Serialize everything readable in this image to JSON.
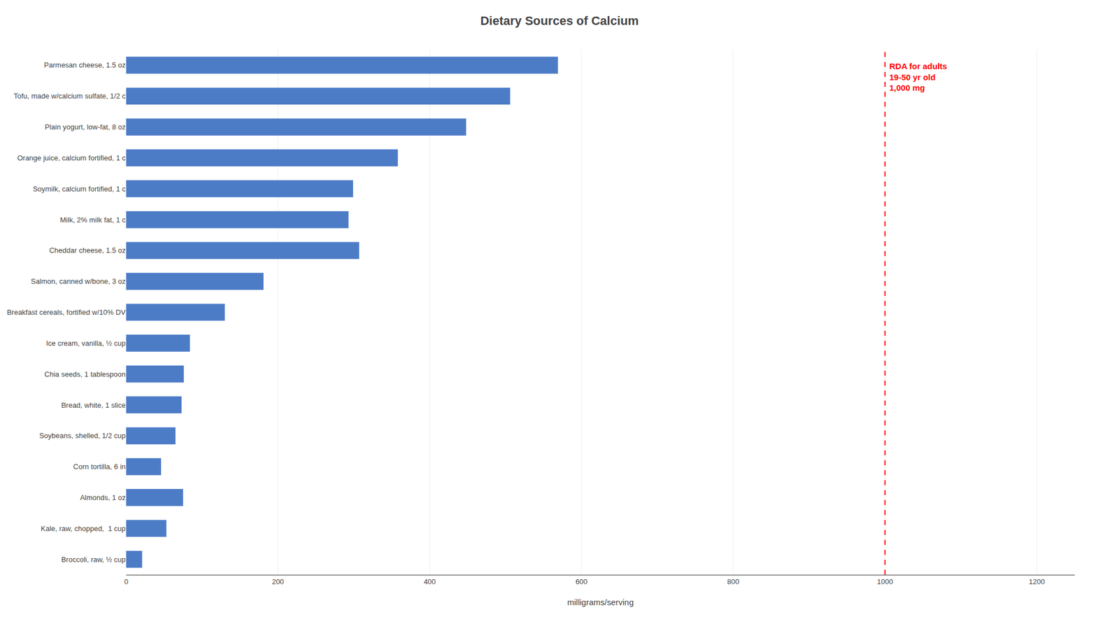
{
  "chart_data": {
    "type": "bar",
    "orientation": "horizontal",
    "title": "Dietary Sources of Calcium",
    "xlabel": "milligrams/serving",
    "categories": [
      "Parmesan cheese, 1.5 oz",
      "Tofu, made w/calcium sulfate, 1/2 c",
      "Plain yogurt, low-fat, 8 oz",
      "Orange juice, calcium fortified, 1 c",
      "Soymilk, calcium fortified, 1 c",
      "Milk, 2% milk fat, 1 c",
      "Cheddar cheese, 1.5 oz",
      "Salmon, canned w/bone, 3 oz",
      "Breakfast cereals, fortified w/10% DV",
      "Ice cream, vanilla, ½ cup",
      "Chia seeds, 1 tablespoon",
      "Bread, white, 1 slice",
      "Soybeans, shelled, 1/2 cup",
      "Corn tortilla, 6 in",
      "Almonds, 1 oz",
      "Kale, raw, chopped,  1 cup",
      "Broccoli, raw, ½ cup"
    ],
    "values": [
      569,
      506,
      448,
      358,
      299,
      293,
      307,
      181,
      130,
      84,
      76,
      73,
      65,
      46,
      75,
      53,
      21
    ],
    "color": "#4d7cc7",
    "xlim": [
      0,
      1250
    ],
    "xticks": [
      0,
      200,
      400,
      600,
      800,
      1000,
      1200
    ],
    "grid": true,
    "annotations": [
      {
        "text": "RDA for adults\n19-50 yr old\n1,000 mg",
        "x": 1000,
        "color": "red",
        "line_style": "dashed"
      }
    ]
  }
}
